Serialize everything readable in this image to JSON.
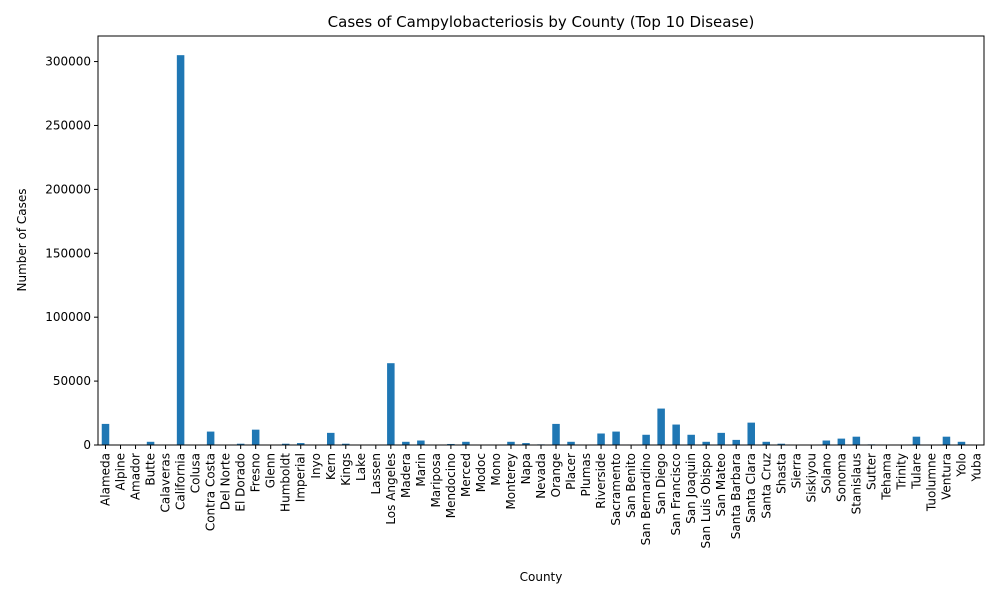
{
  "chart_data": {
    "type": "bar",
    "title": "Cases of Campylobacteriosis by County (Top 10 Disease)",
    "xlabel": "County",
    "ylabel": "Number of Cases",
    "ylim": [
      0,
      320000
    ],
    "yticks": [
      0,
      50000,
      100000,
      150000,
      200000,
      250000,
      300000
    ],
    "grid": false,
    "bar_color": "#1f77b4",
    "categories": [
      "Alameda",
      "Alpine",
      "Amador",
      "Butte",
      "Calaveras",
      "California",
      "Colusa",
      "Contra Costa",
      "Del Norte",
      "El Dorado",
      "Fresno",
      "Glenn",
      "Humboldt",
      "Imperial",
      "Inyo",
      "Kern",
      "Kings",
      "Lake",
      "Lassen",
      "Los Angeles",
      "Madera",
      "Marin",
      "Mariposa",
      "Mendocino",
      "Merced",
      "Modoc",
      "Mono",
      "Monterey",
      "Napa",
      "Nevada",
      "Orange",
      "Placer",
      "Plumas",
      "Riverside",
      "Sacramento",
      "San Benito",
      "San Bernardino",
      "San Diego",
      "San Francisco",
      "San Joaquin",
      "San Luis Obispo",
      "San Mateo",
      "Santa Barbara",
      "Santa Clara",
      "Santa Cruz",
      "Shasta",
      "Sierra",
      "Siskiyou",
      "Solano",
      "Sonoma",
      "Stanislaus",
      "Sutter",
      "Tehama",
      "Trinity",
      "Tulare",
      "Tuolumne",
      "Ventura",
      "Yolo",
      "Yuba"
    ],
    "values": [
      16500,
      100,
      300,
      2500,
      400,
      305000,
      300,
      10500,
      200,
      1000,
      12000,
      200,
      1000,
      1500,
      200,
      9500,
      1000,
      300,
      100,
      64000,
      2500,
      3500,
      100,
      800,
      2500,
      100,
      100,
      2500,
      1500,
      500,
      16500,
      2500,
      100,
      9000,
      10500,
      400,
      8000,
      28500,
      16000,
      8000,
      2500,
      9500,
      4000,
      17500,
      2500,
      1000,
      50,
      200,
      3500,
      5000,
      6500,
      500,
      200,
      100,
      6500,
      400,
      6500,
      2500,
      300
    ]
  }
}
